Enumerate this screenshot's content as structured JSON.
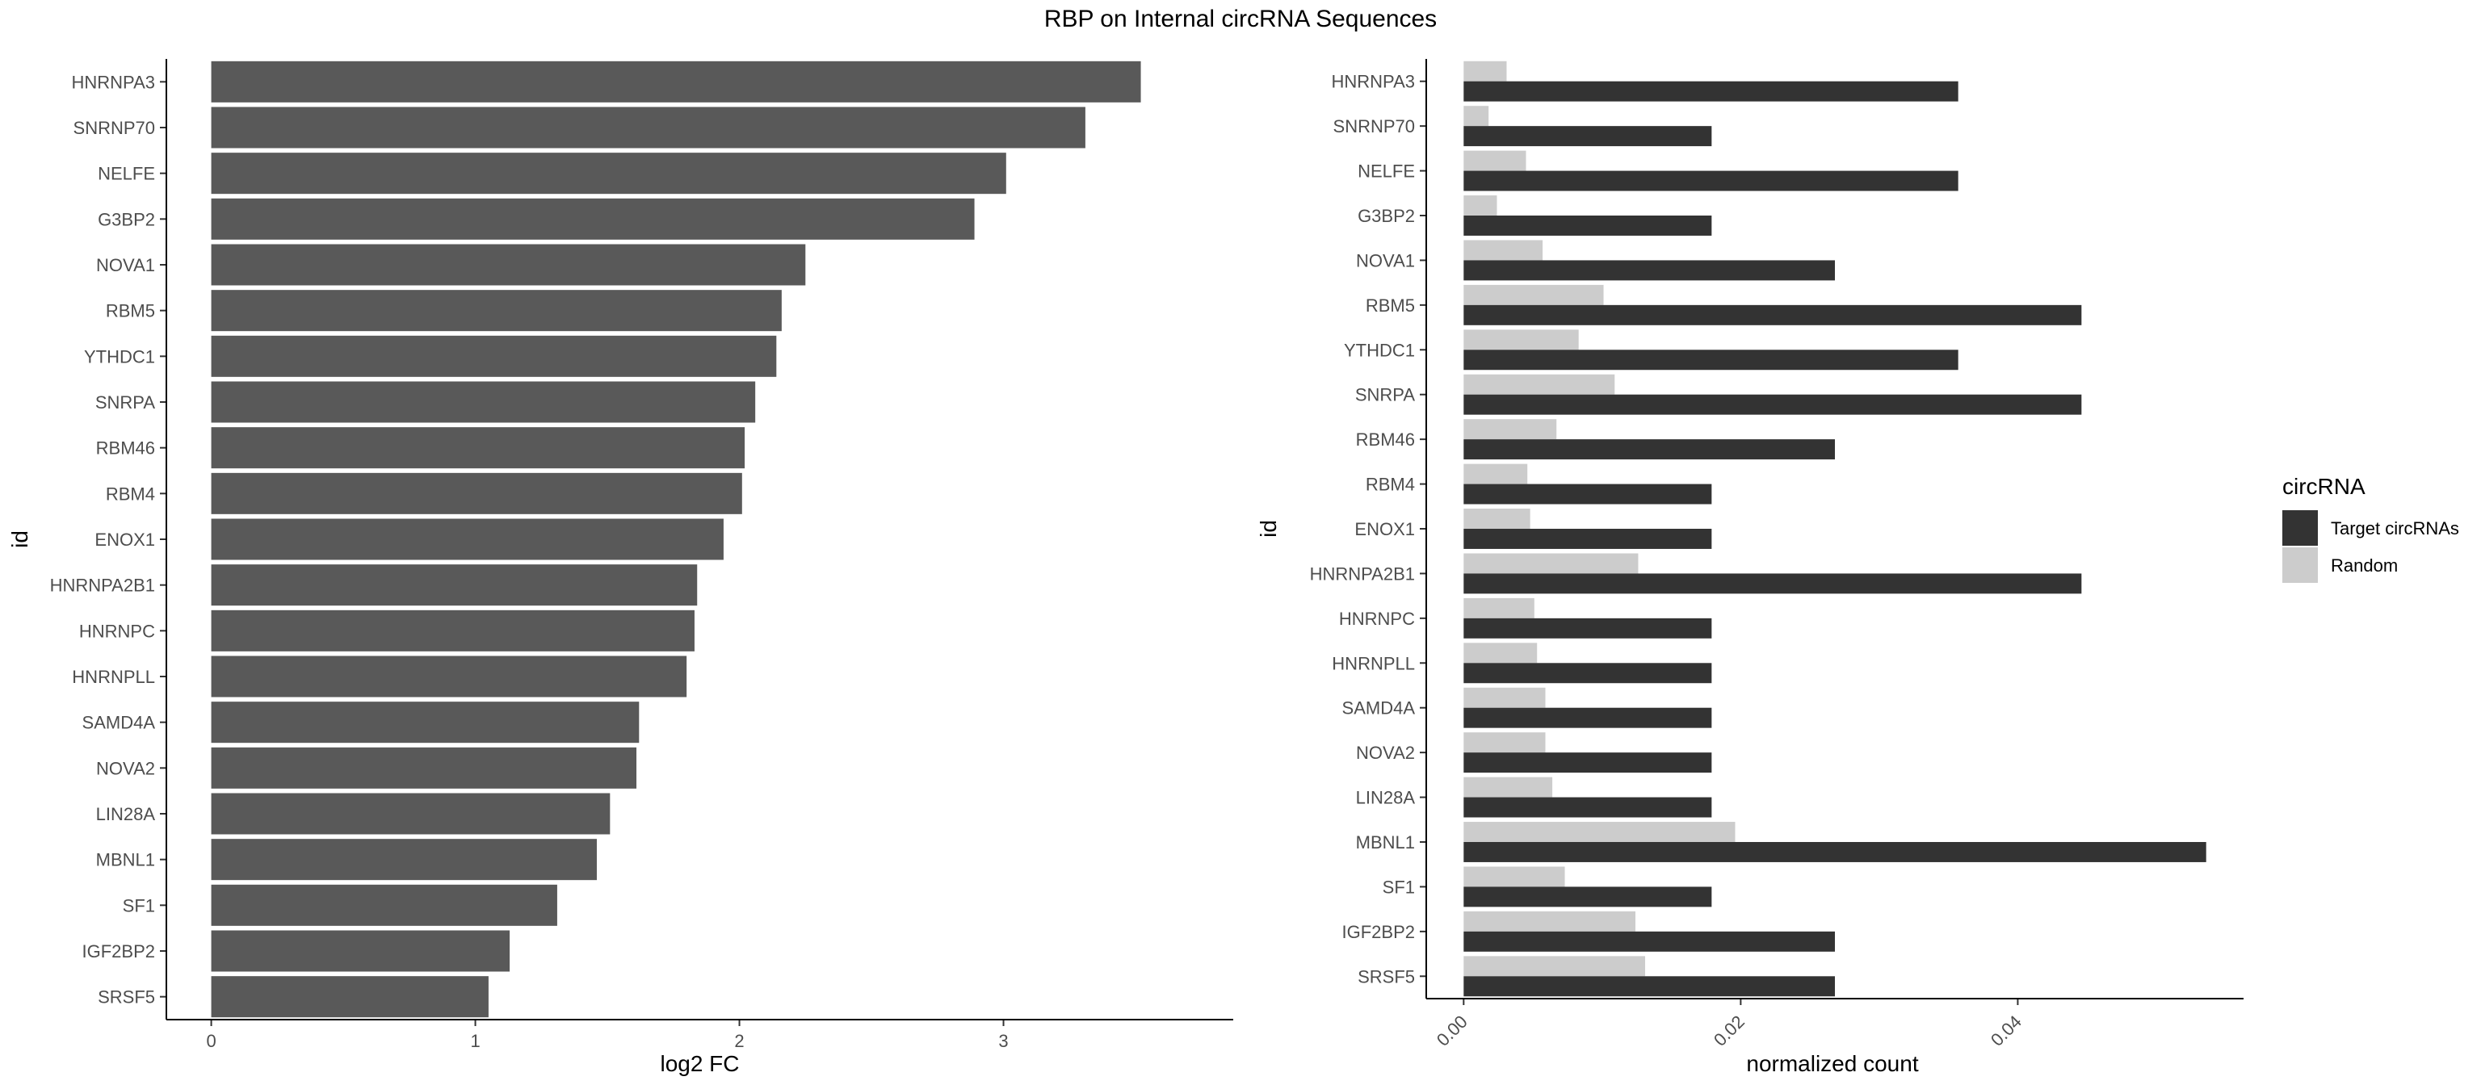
{
  "title": "RBP on Internal circRNA Sequences",
  "chart_data": [
    {
      "type": "bar",
      "orientation": "horizontal",
      "categories": [
        "HNRNPA3",
        "SNRNP70",
        "NELFE",
        "G3BP2",
        "NOVA1",
        "RBM5",
        "YTHDC1",
        "SNRPA",
        "RBM46",
        "RBM4",
        "ENOX1",
        "HNRNPA2B1",
        "HNRNPC",
        "HNRNPLL",
        "SAMD4A",
        "NOVA2",
        "LIN28A",
        "MBNL1",
        "SF1",
        "IGF2BP2",
        "SRSF5"
      ],
      "values": [
        3.52,
        3.31,
        3.01,
        2.89,
        2.25,
        2.16,
        2.14,
        2.06,
        2.02,
        2.01,
        1.94,
        1.84,
        1.83,
        1.8,
        1.62,
        1.61,
        1.51,
        1.46,
        1.31,
        1.13,
        1.05
      ],
      "xlabel": "log2 FC",
      "ylabel": "id",
      "xlim": [
        -0.17,
        3.87
      ],
      "xticks": [
        "0",
        "1",
        "2",
        "3"
      ],
      "bar_color": "#595959",
      "grid": false
    },
    {
      "type": "bar",
      "orientation": "horizontal",
      "grouped": true,
      "categories": [
        "HNRNPA3",
        "SNRNP70",
        "NELFE",
        "G3BP2",
        "NOVA1",
        "RBM5",
        "YTHDC1",
        "SNRPA",
        "RBM46",
        "RBM4",
        "ENOX1",
        "HNRNPA2B1",
        "HNRNPC",
        "HNRNPLL",
        "SAMD4A",
        "NOVA2",
        "LIN28A",
        "MBNL1",
        "SF1",
        "IGF2BP2",
        "SRSF5"
      ],
      "series": [
        {
          "name": "Target circRNAs",
          "color": "#333333",
          "values": [
            0.0357,
            0.0179,
            0.0357,
            0.0179,
            0.0268,
            0.0446,
            0.0357,
            0.0446,
            0.0268,
            0.0179,
            0.0179,
            0.0446,
            0.0179,
            0.0179,
            0.0179,
            0.0179,
            0.0179,
            0.0536,
            0.0179,
            0.0268,
            0.0268
          ]
        },
        {
          "name": "Random",
          "color": "#cccccc",
          "values": [
            0.0031,
            0.0018,
            0.0045,
            0.0024,
            0.0057,
            0.0101,
            0.0083,
            0.0109,
            0.0067,
            0.0046,
            0.0048,
            0.0126,
            0.0051,
            0.0053,
            0.0059,
            0.0059,
            0.0064,
            0.0196,
            0.0073,
            0.0124,
            0.0131
          ]
        }
      ],
      "xlabel": "normalized count",
      "ylabel": "id",
      "xlim": [
        -0.0027,
        0.0563
      ],
      "xticks": [
        "0.00",
        "0.02",
        "0.04"
      ],
      "legend_title": "circRNA",
      "legend_position": "right",
      "grid": false
    }
  ]
}
